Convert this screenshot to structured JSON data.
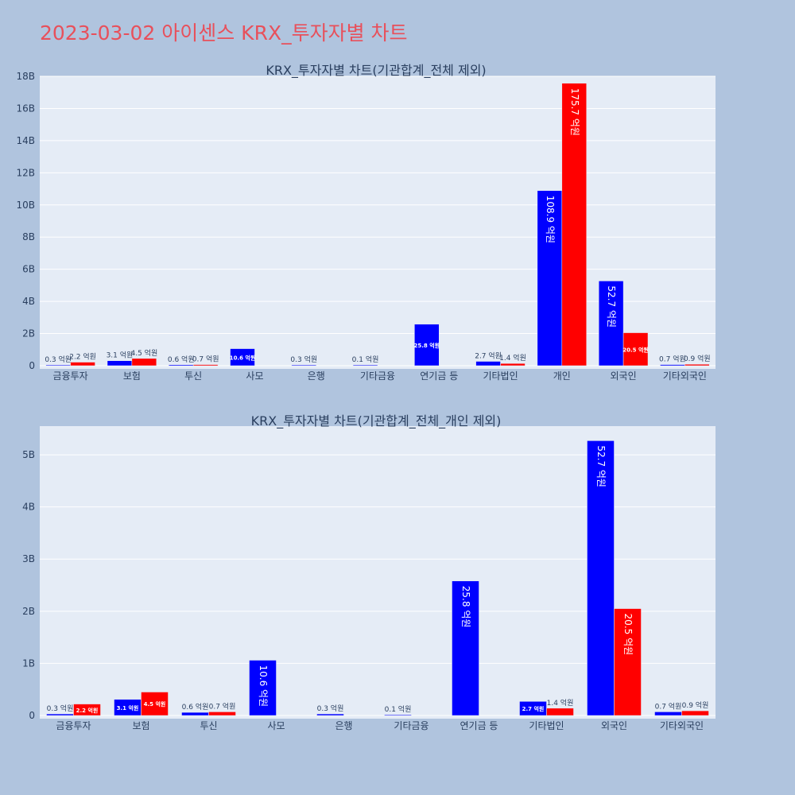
{
  "page": {
    "title": "2023-03-02 아이센스 KRX_투자자별 차트"
  },
  "colors": {
    "background": "#b0c4de",
    "plot_bg": "#e5ecf6",
    "title": "#e8505b",
    "series_a": "#0000ff",
    "series_b": "#ff0000"
  },
  "chart_data": [
    {
      "type": "bar",
      "title": "KRX_투자자별 차트(기관합계_전체 제외)",
      "categories": [
        "금융투자",
        "보험",
        "투신",
        "사모",
        "은행",
        "기타금융",
        "연기금 등",
        "기타법인",
        "개인",
        "외국인",
        "기타외국인"
      ],
      "ylim": [
        0,
        18
      ],
      "y_unit": "B",
      "yticks": [
        "0",
        "2B",
        "4B",
        "6B",
        "8B",
        "10B",
        "12B",
        "14B",
        "16B",
        "18B"
      ],
      "grid": true,
      "series": [
        {
          "color": "#0000ff",
          "values": [
            0.03,
            0.31,
            0.06,
            1.06,
            0.03,
            0.01,
            2.58,
            0.27,
            10.89,
            5.27,
            0.07
          ],
          "labels": [
            "0.3 억원",
            "3.1 억원",
            "0.6 억원",
            "10.6 억원",
            "0.3 억원",
            "0.1 억원",
            "25.8 억원",
            "2.7 억원",
            "108.9 억원",
            "52.7 억원",
            "0.7 억원"
          ]
        },
        {
          "color": "#ff0000",
          "values": [
            0.22,
            0.45,
            0.07,
            null,
            null,
            null,
            null,
            0.14,
            17.57,
            2.05,
            0.09
          ],
          "labels": [
            "2.2 억원",
            "4.5 억원",
            "0.7 억원",
            "",
            "",
            "",
            "",
            "1.4 억원",
            "175.7 억원",
            "20.5 억원",
            "0.9 억원"
          ]
        }
      ]
    },
    {
      "type": "bar",
      "title": "KRX_투자자별 차트(기관합계_전체_개인 제외)",
      "categories": [
        "금융투자",
        "보험",
        "투신",
        "사모",
        "은행",
        "기타금융",
        "연기금 등",
        "기타법인",
        "외국인",
        "기타외국인"
      ],
      "ylim": [
        0,
        5.55
      ],
      "y_unit": "B",
      "yticks": [
        "0",
        "1B",
        "2B",
        "3B",
        "4B",
        "5B"
      ],
      "grid": true,
      "series": [
        {
          "color": "#0000ff",
          "values": [
            0.03,
            0.31,
            0.06,
            1.06,
            0.03,
            0.01,
            2.58,
            0.27,
            5.27,
            0.07
          ],
          "labels": [
            "0.3 억원",
            "3.1 억원",
            "0.6 억원",
            "10.6 억원",
            "0.3 억원",
            "0.1 억원",
            "25.8 억원",
            "2.7 억원",
            "52.7 억원",
            "0.7 억원"
          ]
        },
        {
          "color": "#ff0000",
          "values": [
            0.22,
            0.45,
            0.07,
            null,
            null,
            null,
            null,
            0.14,
            2.05,
            0.09
          ],
          "labels": [
            "2.2 억원",
            "4.5 억원",
            "0.7 억원",
            "",
            "",
            "",
            "",
            "1.4 억원",
            "20.5 억원",
            "0.9 억원"
          ]
        }
      ]
    }
  ]
}
